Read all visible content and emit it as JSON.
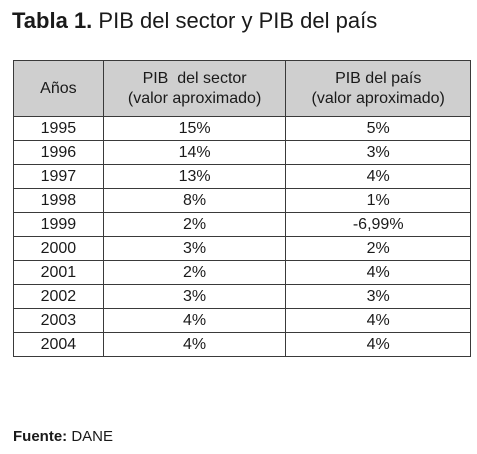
{
  "title": {
    "prefix": "Tabla 1.",
    "text": "PIB del sector y PIB del país"
  },
  "table": {
    "headers": [
      {
        "line1": "Años",
        "line2": ""
      },
      {
        "line1": "PIB  del sector",
        "line2": "(valor aproximado)"
      },
      {
        "line1": "PIB del país",
        "line2": "(valor aproximado)"
      }
    ],
    "rows": [
      [
        "1995",
        "15%",
        "5%"
      ],
      [
        "1996",
        "14%",
        "3%"
      ],
      [
        "1997",
        "13%",
        "4%"
      ],
      [
        "1998",
        "8%",
        "1%"
      ],
      [
        "1999",
        "2%",
        "-6,99%"
      ],
      [
        "2000",
        "3%",
        "2%"
      ],
      [
        "2001",
        "2%",
        "4%"
      ],
      [
        "2002",
        "3%",
        "3%"
      ],
      [
        "2003",
        "4%",
        "4%"
      ],
      [
        "2004",
        "4%",
        "4%"
      ]
    ]
  },
  "source": {
    "label": "Fuente:",
    "value": "DANE"
  },
  "colors": {
    "header_background": "#cfcfcf",
    "border": "#3a3a3a",
    "text": "#1a1a1a"
  }
}
